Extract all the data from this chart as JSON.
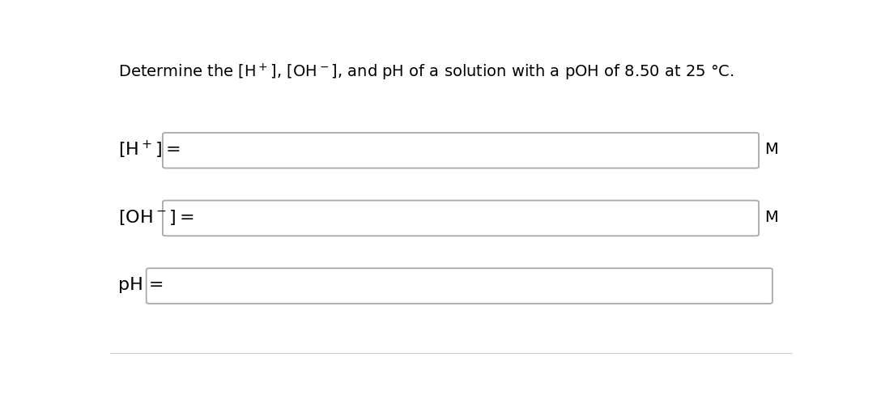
{
  "title": "Determine the $\\left[\\mathrm{H^+}\\right]$, $\\left[\\mathrm{OH^-}\\right]$, and pH of a solution with a pOH of 8.50 at 25 °C.",
  "title_plain": "Determine the |H⁺|, |OH⁻|, and pH of a solution with a pOH of 8.50 at 25 °C.",
  "label1": "$\\left[\\mathrm{H^+}\\right] =$",
  "label2": "$\\left[\\mathrm{OH^-}\\right] =$",
  "label3": "pH =",
  "unit1": "M",
  "unit2": "M",
  "background_color": "#ffffff",
  "box_edge_color": "#aaaaaa",
  "text_color": "#000000",
  "fig_width": 10.88,
  "fig_height": 4.94,
  "title_fontsize": 14,
  "label_fontsize": 16,
  "unit_fontsize": 14
}
